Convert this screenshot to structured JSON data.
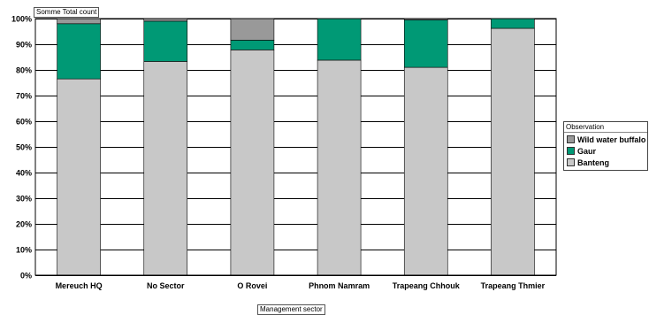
{
  "chart_data": {
    "type": "bar",
    "stacked": true,
    "percent_stacked": true,
    "data_field_label": "Somme Total count",
    "xlabel": "Management sector",
    "ylim": [
      0,
      100
    ],
    "yticks": [
      "0%",
      "10%",
      "20%",
      "30%",
      "40%",
      "50%",
      "60%",
      "70%",
      "80%",
      "90%",
      "100%"
    ],
    "grid": true,
    "legend_position": "right",
    "legend_title": "Observation",
    "categories": [
      "Mereuch HQ",
      "No Sector",
      "O Rovei",
      "Phnom Namram",
      "Trapeang Chhouk",
      "Trapeang Thmier"
    ],
    "series": [
      {
        "name": "Banteng",
        "color": "#c8c8c8",
        "values": [
          76.5,
          83.3,
          87.8,
          83.8,
          81.0,
          96.2
        ]
      },
      {
        "name": "Gaur",
        "color": "#009975",
        "values": [
          21.5,
          15.7,
          3.8,
          16.2,
          18.5,
          3.8
        ]
      },
      {
        "name": "Wild water buffalo",
        "color": "#999999",
        "values": [
          2.0,
          1.0,
          8.4,
          0.0,
          0.5,
          0.0
        ]
      }
    ]
  }
}
